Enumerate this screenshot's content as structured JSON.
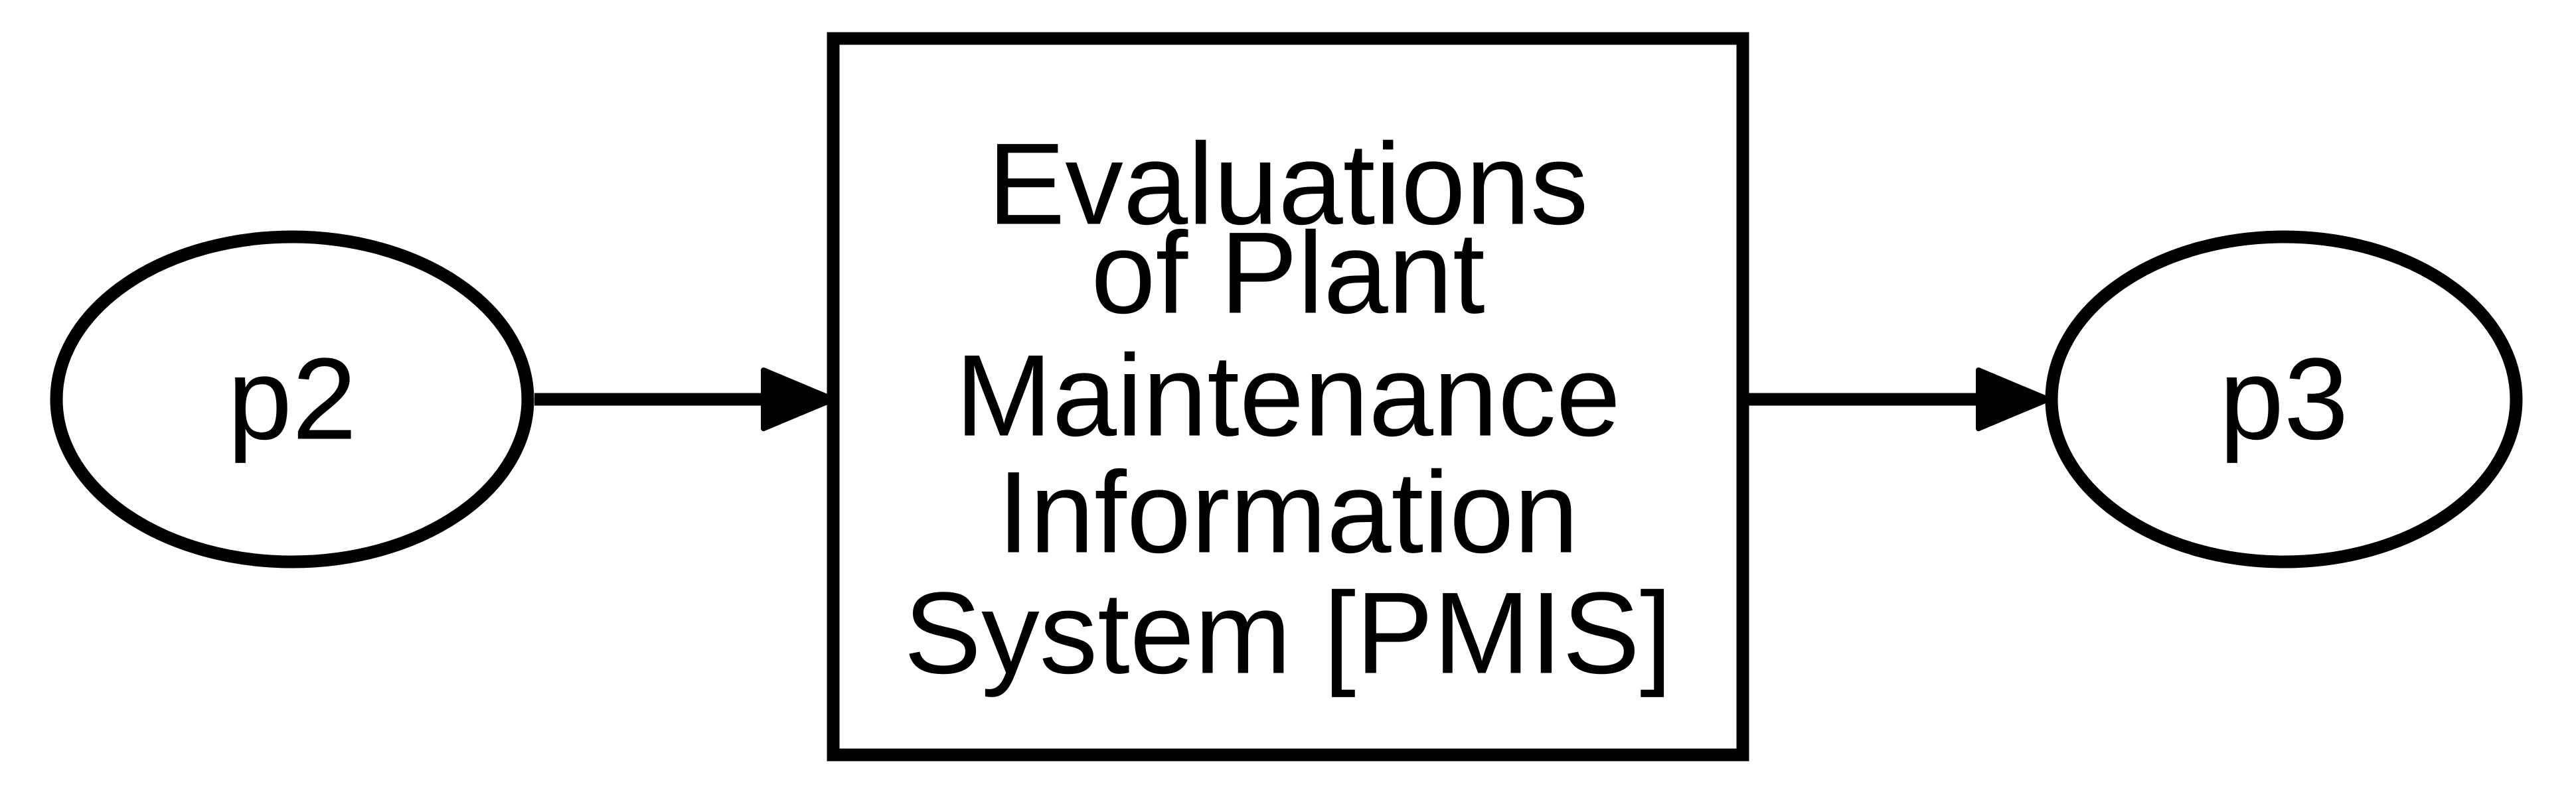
{
  "diagram": {
    "nodes": {
      "p2": {
        "label": "p2",
        "shape": "ellipse"
      },
      "process": {
        "shape": "rectangle",
        "lines": [
          "Evaluations",
          "of Plant",
          "Maintenance",
          "Information",
          "System [PMIS]"
        ]
      },
      "p3": {
        "label": "p3",
        "shape": "ellipse"
      }
    },
    "edges": [
      {
        "from": "p2",
        "to": "process"
      },
      {
        "from": "process",
        "to": "p3"
      }
    ],
    "colors": {
      "stroke": "#000000",
      "background": "#ffffff"
    }
  }
}
